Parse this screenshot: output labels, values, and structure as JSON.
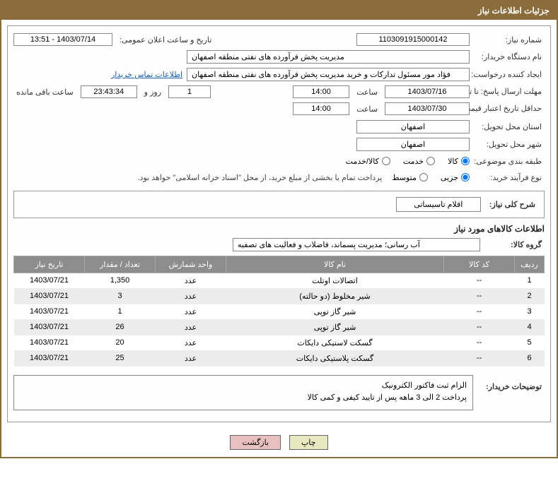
{
  "header_title": "جزئیات اطلاعات نیاز",
  "labels": {
    "need_no": "شماره نیاز:",
    "announce_dt": "تاریخ و ساعت اعلان عمومی:",
    "buyer_org": "نام دستگاه خریدار:",
    "requester": "ایجاد کننده درخواست:",
    "buyer_contact": "اطلاعات تماس خریدار",
    "deadline": "مهلت ارسال پاسخ: تا تاریخ:",
    "time_word": "ساعت",
    "days_and": "روز و",
    "remaining": "ساعت باقی مانده",
    "validity": "حداقل تاریخ اعتبار قیمت: تا تاریخ:",
    "deliv_prov": "استان محل تحویل:",
    "deliv_city": "شهر محل تحویل:",
    "subject_cat": "طبقه بندی موضوعی:",
    "purchase_type": "نوع فرآیند خرید:",
    "overview": "شرح کلی نیاز:",
    "goods_info_title": "اطلاعات کالاهای مورد نیاز",
    "goods_group": "گروه کالا:",
    "buyer_notes": "توضیحات خریدار:",
    "col_row": "ردیف",
    "col_code": "کد کالا",
    "col_name": "نام کالا",
    "col_unit": "واحد شمارش",
    "col_qty": "تعداد / مقدار",
    "col_date": "تاریخ نیاز"
  },
  "values": {
    "need_no": "1103091915000142",
    "announce_dt": "1403/07/14 - 13:51",
    "buyer_org": "مدیریت پخش فرآورده های نفتی منطقه اصفهان",
    "requester": "فؤاد مور مسئول تدارکات و خرید مدیریت پخش فرآورده های نفتی منطقه اصفهان",
    "deadline_date": "1403/07/16",
    "deadline_time": "14:00",
    "days_left": "1",
    "time_left": "23:43:34",
    "validity_date": "1403/07/30",
    "validity_time": "14:00",
    "province": "اصفهان",
    "city": "اصفهان",
    "purchase_note": "پرداخت تمام یا بخشی از مبلغ خرید، از محل \"اسناد خزانه اسلامی\" خواهد بود.",
    "overview_text": "اقلام تاسیساتی",
    "goods_group": "آب رسانی؛ مدیریت پسماند، فاضلاب و فعالیت های تصفیه",
    "buyer_notes": "الزام ثبت فاکتور الکترونیک\nپرداخت 2 الی 3 ماهه پس از تایید کیفی و کمی کالا"
  },
  "radios": {
    "cat_goods": "کالا",
    "cat_service": "خدمت",
    "cat_both": "کالا/خدمت",
    "pt_minor": "جزیی",
    "pt_medium": "متوسط"
  },
  "buttons": {
    "print": "چاپ",
    "back": "بازگشت"
  },
  "table_rows": [
    {
      "n": "1",
      "code": "--",
      "name": "اتصالات اوتلت",
      "unit": "عدد",
      "qty": "1,350",
      "date": "1403/07/21"
    },
    {
      "n": "2",
      "code": "--",
      "name": "شیر مخلوط (دو حالته)",
      "unit": "عدد",
      "qty": "3",
      "date": "1403/07/21"
    },
    {
      "n": "3",
      "code": "--",
      "name": "شیر گاز توپی",
      "unit": "عدد",
      "qty": "1",
      "date": "1403/07/21"
    },
    {
      "n": "4",
      "code": "--",
      "name": "شیر گاز توپی",
      "unit": "عدد",
      "qty": "26",
      "date": "1403/07/21"
    },
    {
      "n": "5",
      "code": "--",
      "name": "گسکت لاستیکی دایکات",
      "unit": "عدد",
      "qty": "20",
      "date": "1403/07/21"
    },
    {
      "n": "6",
      "code": "--",
      "name": "گسکت پلاستیکی دایکات",
      "unit": "عدد",
      "qty": "25",
      "date": "1403/07/21"
    }
  ],
  "watermark": "AriaTender.net",
  "colors": {
    "accent": "#8a6d3b",
    "th_bg": "#8d8d8d",
    "link": "#1a5fb4"
  }
}
